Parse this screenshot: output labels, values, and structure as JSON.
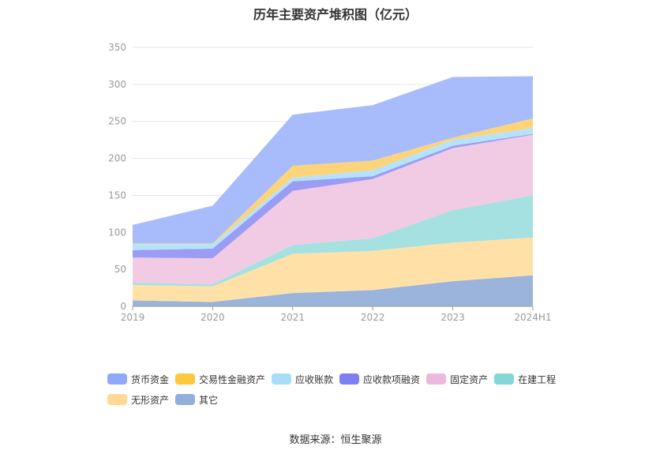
{
  "title": "历年主要资产堆积图（亿元）",
  "source_label": "数据来源：恒生聚源",
  "chart_data": {
    "type": "area",
    "stacked": true,
    "title": "历年主要资产堆积图（亿元）",
    "categories": [
      "2019",
      "2020",
      "2021",
      "2022",
      "2023",
      "2024H1"
    ],
    "ylim": [
      0,
      350
    ],
    "yticks": [
      "0",
      "50",
      "100",
      "150",
      "200",
      "250",
      "300",
      "350"
    ],
    "grid": true,
    "legend_position": "bottom",
    "series": [
      {
        "name": "其它",
        "color": "#9bb4dc",
        "values": [
          8,
          6,
          18,
          22,
          34,
          42
        ]
      },
      {
        "name": "无形资产",
        "color": "#ffe1a8",
        "values": [
          21,
          21,
          53,
          53,
          52,
          51
        ]
      },
      {
        "name": "在建工程",
        "color": "#a6e1e1",
        "values": [
          3,
          3,
          12,
          17,
          44,
          57
        ]
      },
      {
        "name": "固定资产",
        "color": "#f0cbe3",
        "values": [
          34,
          35,
          73,
          80,
          84,
          82
        ]
      },
      {
        "name": "应收款项融资",
        "color": "#9b9cf4",
        "values": [
          10,
          13,
          13,
          4,
          3,
          1
        ]
      },
      {
        "name": "应收账款",
        "color": "#b5e3fb",
        "values": [
          8,
          6,
          5,
          8,
          8,
          8
        ]
      },
      {
        "name": "交易性金融资产",
        "color": "#fdd47a",
        "values": [
          1,
          1,
          16,
          13,
          3,
          13
        ]
      },
      {
        "name": "货币资金",
        "color": "#a8bbfb",
        "values": [
          25,
          51,
          69,
          75,
          82,
          57
        ]
      }
    ],
    "legend": [
      {
        "name": "货币资金",
        "color": "#8fa8fb"
      },
      {
        "name": "交易性金融资产",
        "color": "#fcc83d"
      },
      {
        "name": "应收账款",
        "color": "#a6defa"
      },
      {
        "name": "应收款项融资",
        "color": "#7d7ff2"
      },
      {
        "name": "固定资产",
        "color": "#ecb9dc"
      },
      {
        "name": "在建工程",
        "color": "#85d6d6"
      },
      {
        "name": "无形资产",
        "color": "#ffd993"
      },
      {
        "name": "其它",
        "color": "#92aedd"
      }
    ]
  }
}
